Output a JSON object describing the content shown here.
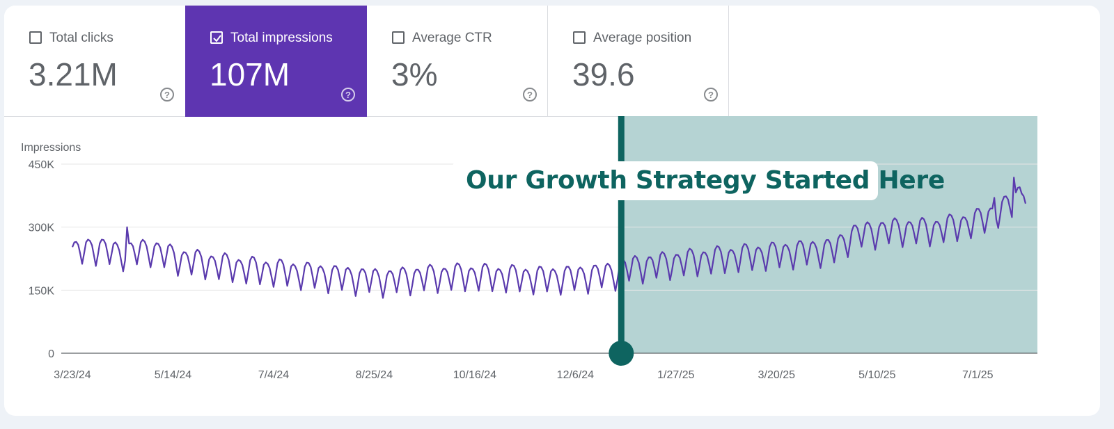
{
  "metrics": [
    {
      "label": "Total clicks",
      "value": "3.21M",
      "checked": false
    },
    {
      "label": "Total impressions",
      "value": "107M",
      "checked": true
    },
    {
      "label": "Average CTR",
      "value": "3%",
      "checked": false
    },
    {
      "label": "Average position",
      "value": "39.6",
      "checked": false
    }
  ],
  "help_glyph": "?",
  "annotation": "Our Growth Strategy Started Here",
  "colors": {
    "accent": "#5e35b1",
    "line": "#5a3aad",
    "highlight": "#b5d3d3",
    "marker": "#0e6460"
  },
  "chart_data": {
    "type": "line",
    "ylabel": "Impressions",
    "ylim": [
      0,
      450000
    ],
    "y_ticks": [
      {
        "value": 0,
        "label": "0"
      },
      {
        "value": 150000,
        "label": "150K"
      },
      {
        "value": 300000,
        "label": "300K"
      },
      {
        "value": 450000,
        "label": "450K"
      }
    ],
    "x_tick_labels": [
      "3/23/24",
      "5/14/24",
      "7/4/24",
      "8/25/24",
      "10/16/24",
      "12/6/24",
      "1/27/25",
      "3/20/25",
      "5/10/25",
      "7/1/25"
    ],
    "x_start": "3/23/24",
    "x_days": 488,
    "highlight_start_day": 281,
    "series": [
      {
        "name": "Impressions",
        "anchors": [
          [
            0,
            235000
          ],
          [
            10,
            250000
          ],
          [
            25,
            235000
          ],
          [
            40,
            245000
          ],
          [
            55,
            222000
          ],
          [
            70,
            212000
          ],
          [
            90,
            200000
          ],
          [
            110,
            192000
          ],
          [
            130,
            183000
          ],
          [
            150,
            175000
          ],
          [
            160,
            172000
          ],
          [
            180,
            180000
          ],
          [
            200,
            184000
          ],
          [
            220,
            181000
          ],
          [
            240,
            177000
          ],
          [
            260,
            180000
          ],
          [
            280,
            190000
          ],
          [
            282,
            200000
          ],
          [
            300,
            210000
          ],
          [
            320,
            220000
          ],
          [
            340,
            228000
          ],
          [
            360,
            235000
          ],
          [
            380,
            242000
          ],
          [
            390,
            245000
          ],
          [
            400,
            280000
          ],
          [
            420,
            292000
          ],
          [
            440,
            292000
          ],
          [
            460,
            308000
          ],
          [
            470,
            325000
          ],
          [
            480,
            350000
          ],
          [
            488,
            395000
          ]
        ],
        "weekly_amplitude": 25000,
        "spikes": [
          {
            "day": 28,
            "value": 300000
          },
          {
            "day": 472,
            "value": 370000
          },
          {
            "day": 482,
            "value": 418000
          },
          {
            "day": 486,
            "value": 380000
          }
        ]
      }
    ]
  }
}
